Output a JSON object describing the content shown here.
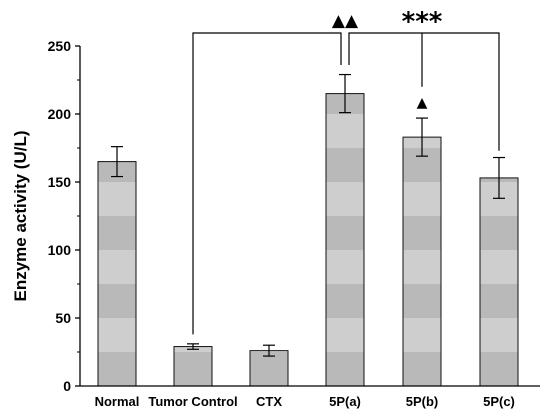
{
  "chart_data": {
    "type": "bar",
    "categories": [
      "Normal",
      "Tumor Control",
      "CTX",
      "5P(a)",
      "5P(b)",
      "5P(c)"
    ],
    "values": [
      165,
      29,
      26,
      215,
      183,
      153
    ],
    "errors": [
      11,
      2,
      4,
      14,
      14,
      15
    ],
    "ylabel": "Enzyme activity (U/L)",
    "xlabel": "",
    "ylim": [
      0,
      250
    ],
    "yticks": [
      0,
      50,
      100,
      150,
      200,
      250
    ],
    "bar_color_light": "#cecece",
    "bar_color_dark": "#b9b9b9",
    "grid": false,
    "annotations": [
      {
        "text": "▲▲",
        "bracket": [
          "Tumor Control",
          "5P(a)"
        ]
      },
      {
        "text": "***",
        "bracket": [
          "5P(a)",
          "5P(c)"
        ],
        "tick": "5P(b)"
      },
      {
        "text": "▲",
        "above": "5P(b)"
      }
    ]
  }
}
